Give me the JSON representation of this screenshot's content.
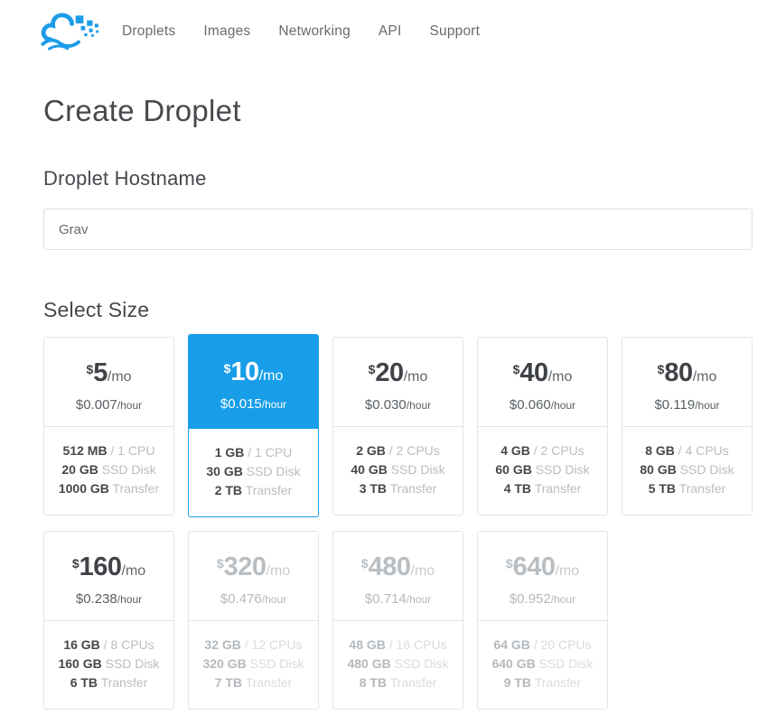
{
  "brand": {
    "logo": "digitalocean-cloud-logo",
    "blue": "#1d9ce8"
  },
  "nav": {
    "items": [
      "Droplets",
      "Images",
      "Networking",
      "API",
      "Support"
    ]
  },
  "page": {
    "title": "Create Droplet"
  },
  "hostname_section": {
    "heading": "Droplet Hostname",
    "input_value": "Grav",
    "input_placeholder": ""
  },
  "size_section": {
    "heading": "Select Size",
    "selected_color": "#189ee9",
    "cards": [
      {
        "currency": "$",
        "price": "5",
        "per": "/mo",
        "hourly": "$0.007",
        "hourly_per": "/hour",
        "ram": "512 MB",
        "cpu": "/ 1 CPU",
        "disk": "20 GB",
        "disk_label": "SSD Disk",
        "transfer": "1000 GB",
        "transfer_label": "Transfer",
        "state": "default"
      },
      {
        "currency": "$",
        "price": "10",
        "per": "/mo",
        "hourly": "$0.015",
        "hourly_per": "/hour",
        "ram": "1 GB",
        "cpu": "/ 1 CPU",
        "disk": "30 GB",
        "disk_label": "SSD Disk",
        "transfer": "2 TB",
        "transfer_label": "Transfer",
        "state": "selected"
      },
      {
        "currency": "$",
        "price": "20",
        "per": "/mo",
        "hourly": "$0.030",
        "hourly_per": "/hour",
        "ram": "2 GB",
        "cpu": "/ 2 CPUs",
        "disk": "40 GB",
        "disk_label": "SSD Disk",
        "transfer": "3 TB",
        "transfer_label": "Transfer",
        "state": "default"
      },
      {
        "currency": "$",
        "price": "40",
        "per": "/mo",
        "hourly": "$0.060",
        "hourly_per": "/hour",
        "ram": "4 GB",
        "cpu": "/ 2 CPUs",
        "disk": "60 GB",
        "disk_label": "SSD Disk",
        "transfer": "4 TB",
        "transfer_label": "Transfer",
        "state": "default"
      },
      {
        "currency": "$",
        "price": "80",
        "per": "/mo",
        "hourly": "$0.119",
        "hourly_per": "/hour",
        "ram": "8 GB",
        "cpu": "/ 4 CPUs",
        "disk": "80 GB",
        "disk_label": "SSD Disk",
        "transfer": "5 TB",
        "transfer_label": "Transfer",
        "state": "default"
      },
      {
        "currency": "$",
        "price": "160",
        "per": "/mo",
        "hourly": "$0.238",
        "hourly_per": "/hour",
        "ram": "16 GB",
        "cpu": "/ 8 CPUs",
        "disk": "160 GB",
        "disk_label": "SSD Disk",
        "transfer": "6 TB",
        "transfer_label": "Transfer",
        "state": "default"
      },
      {
        "currency": "$",
        "price": "320",
        "per": "/mo",
        "hourly": "$0.476",
        "hourly_per": "/hour",
        "ram": "32 GB",
        "cpu": "/ 12 CPUs",
        "disk": "320 GB",
        "disk_label": "SSD Disk",
        "transfer": "7 TB",
        "transfer_label": "Transfer",
        "state": "disabled"
      },
      {
        "currency": "$",
        "price": "480",
        "per": "/mo",
        "hourly": "$0.714",
        "hourly_per": "/hour",
        "ram": "48 GB",
        "cpu": "/ 16 CPUs",
        "disk": "480 GB",
        "disk_label": "SSD Disk",
        "transfer": "8 TB",
        "transfer_label": "Transfer",
        "state": "disabled"
      },
      {
        "currency": "$",
        "price": "640",
        "per": "/mo",
        "hourly": "$0.952",
        "hourly_per": "/hour",
        "ram": "64 GB",
        "cpu": "/ 20 CPUs",
        "disk": "640 GB",
        "disk_label": "SSD Disk",
        "transfer": "9 TB",
        "transfer_label": "Transfer",
        "state": "disabled"
      }
    ]
  }
}
